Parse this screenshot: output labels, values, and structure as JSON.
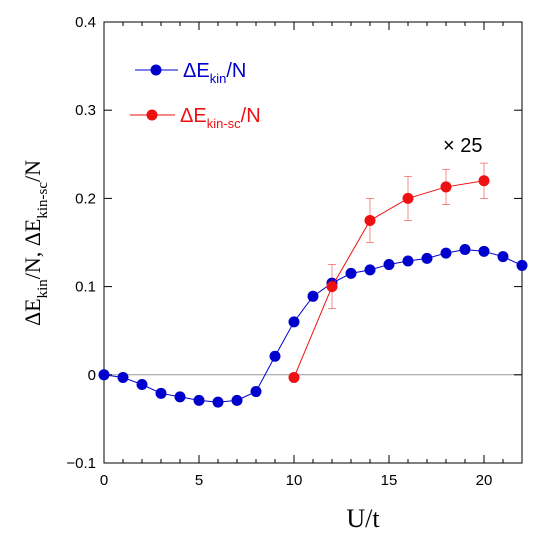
{
  "chart_data": {
    "type": "line",
    "xlabel": "U/t",
    "ylabel": {
      "parts": [
        {
          "t": "ΔE",
          "sub": false
        },
        {
          "t": "kin",
          "sub": true
        },
        {
          "t": "/N,  ΔE",
          "sub": false
        },
        {
          "t": "kin-sc",
          "sub": true
        },
        {
          "t": "/N",
          "sub": false
        }
      ]
    },
    "xlim": [
      0,
      22
    ],
    "ylim": [
      -0.1,
      0.4
    ],
    "xticks": [
      0,
      5,
      10,
      15,
      20
    ],
    "yticks": [
      -0.1,
      0,
      0.1,
      0.2,
      0.3,
      0.4
    ],
    "xtick_labels": [
      "0",
      "5",
      "10",
      "15",
      "20"
    ],
    "ytick_labels": [
      "−0.1",
      "0",
      "0.1",
      "0.2",
      "0.3",
      "0.4"
    ],
    "zero_line": true,
    "annotation": "× 25",
    "legend_position": "top-left",
    "series": [
      {
        "name": "ΔE",
        "name_sub": "kin",
        "name_suffix": "/N",
        "color": "#0000cc",
        "x": [
          0,
          1,
          2,
          3,
          4,
          5,
          6,
          7,
          8,
          9,
          10,
          11,
          12,
          13,
          14,
          15,
          16,
          17,
          18,
          19,
          20,
          21,
          22
        ],
        "y": [
          0.0,
          -0.003,
          -0.011,
          -0.021,
          -0.025,
          -0.029,
          -0.031,
          -0.029,
          -0.019,
          0.021,
          0.06,
          0.089,
          0.104,
          0.115,
          0.119,
          0.125,
          0.129,
          0.132,
          0.138,
          0.142,
          0.14,
          0.134,
          0.124
        ]
      },
      {
        "name": "ΔE",
        "name_sub": "kin-sc",
        "name_suffix": "/N",
        "color": "#ee1111",
        "x": [
          10,
          12,
          14,
          16,
          18,
          20
        ],
        "y": [
          -0.003,
          0.1,
          0.175,
          0.2,
          0.213,
          0.22
        ],
        "err": [
          0,
          0.025,
          0.025,
          0.025,
          0.02,
          0.02
        ]
      }
    ]
  }
}
